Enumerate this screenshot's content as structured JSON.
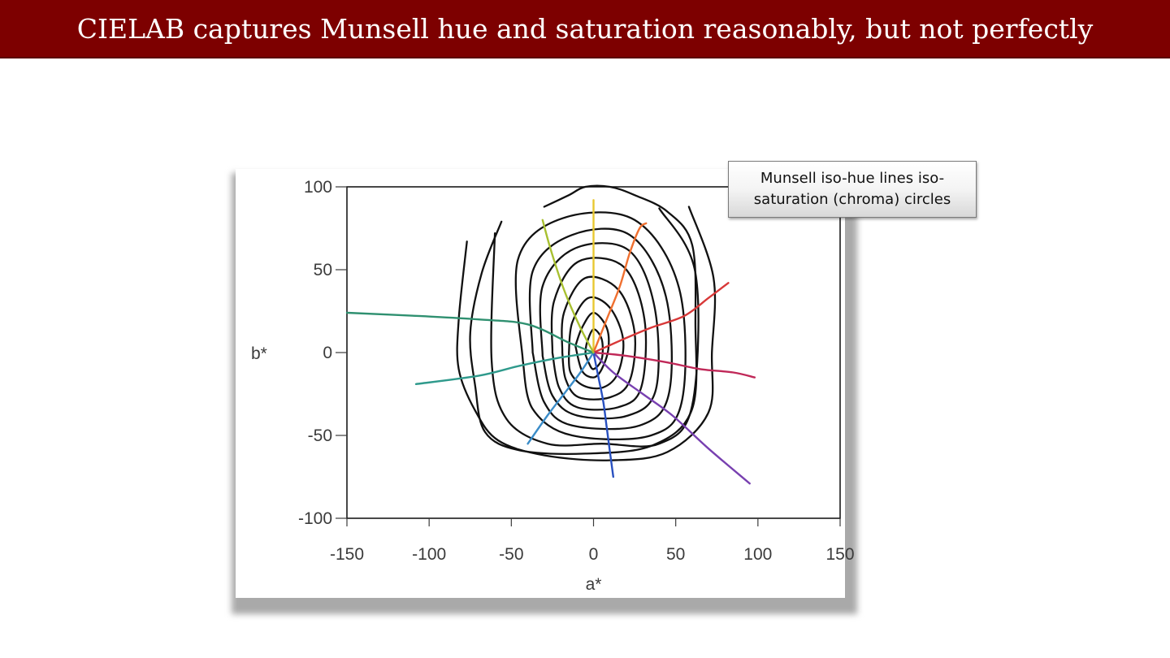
{
  "slide": {
    "title": "CIELAB captures Munsell hue and saturation reasonably, but not perfectly",
    "title_bar_color": "#7d0000",
    "callout_text": "Munsell iso-hue lines  iso-saturation (chroma) circles"
  },
  "chart_data": {
    "type": "line",
    "title": "",
    "xlabel": "a*",
    "ylabel": "b*",
    "xlim": [
      -150,
      150
    ],
    "ylim": [
      -100,
      100
    ],
    "xticks": [
      -150,
      -100,
      -50,
      0,
      50,
      100,
      150
    ],
    "yticks": [
      100,
      50,
      0,
      -50,
      -100
    ],
    "grid": false,
    "iso_hue_lines": [
      {
        "color": "#e8c830",
        "points": [
          [
            0,
            0
          ],
          [
            0,
            20
          ],
          [
            0,
            40
          ],
          [
            0,
            60
          ],
          [
            0,
            80
          ],
          [
            0,
            92
          ]
        ]
      },
      {
        "color": "#f07030",
        "points": [
          [
            0,
            0
          ],
          [
            8,
            20
          ],
          [
            16,
            40
          ],
          [
            22,
            60
          ],
          [
            28,
            75
          ],
          [
            32,
            78
          ]
        ]
      },
      {
        "color": "#d83838",
        "points": [
          [
            0,
            0
          ],
          [
            18,
            8
          ],
          [
            35,
            15
          ],
          [
            55,
            22
          ],
          [
            70,
            33
          ],
          [
            82,
            42
          ]
        ]
      },
      {
        "color": "#c02858",
        "points": [
          [
            0,
            0
          ],
          [
            20,
            -2
          ],
          [
            45,
            -6
          ],
          [
            65,
            -10
          ],
          [
            85,
            -12
          ],
          [
            98,
            -15
          ]
        ]
      },
      {
        "color": "#7840b0",
        "points": [
          [
            0,
            0
          ],
          [
            12,
            -12
          ],
          [
            30,
            -25
          ],
          [
            48,
            -38
          ],
          [
            70,
            -58
          ],
          [
            95,
            -79
          ]
        ]
      },
      {
        "color": "#2850c0",
        "points": [
          [
            0,
            0
          ],
          [
            3,
            -15
          ],
          [
            6,
            -30
          ],
          [
            8,
            -45
          ],
          [
            10,
            -60
          ],
          [
            12,
            -75
          ]
        ]
      },
      {
        "color": "#3a8cc8",
        "points": [
          [
            0,
            0
          ],
          [
            -8,
            -12
          ],
          [
            -18,
            -25
          ],
          [
            -28,
            -38
          ],
          [
            -40,
            -55
          ]
        ]
      },
      {
        "color": "#2f9a8c",
        "points": [
          [
            0,
            0
          ],
          [
            -20,
            -3
          ],
          [
            -45,
            -8
          ],
          [
            -70,
            -14
          ],
          [
            -108,
            -19
          ]
        ]
      },
      {
        "color": "#2f9070",
        "points": [
          [
            0,
            0
          ],
          [
            -15,
            6
          ],
          [
            -40,
            17
          ],
          [
            -70,
            20
          ],
          [
            -105,
            22
          ],
          [
            -150,
            24
          ]
        ]
      },
      {
        "color": "#a8c030",
        "points": [
          [
            0,
            0
          ],
          [
            -8,
            15
          ],
          [
            -18,
            38
          ],
          [
            -26,
            62
          ],
          [
            -31,
            80
          ]
        ]
      }
    ],
    "iso_chroma_contours": [
      {
        "color": "#111111",
        "points": [
          [
            -5,
            -1
          ],
          [
            -4,
            6
          ],
          [
            0,
            14
          ],
          [
            5,
            8
          ],
          [
            5,
            -4
          ],
          [
            0,
            -10
          ],
          [
            -3,
            -6
          ],
          [
            -5,
            -1
          ]
        ]
      },
      {
        "color": "#111111",
        "points": [
          [
            -11,
            4
          ],
          [
            -7,
            15
          ],
          [
            0,
            24
          ],
          [
            8,
            15
          ],
          [
            9,
            2
          ],
          [
            5,
            -10
          ],
          [
            0,
            -15
          ],
          [
            -7,
            -11
          ],
          [
            -11,
            4
          ]
        ]
      },
      {
        "color": "#111111",
        "points": [
          [
            -15,
            0
          ],
          [
            -13,
            18
          ],
          [
            -3,
            33
          ],
          [
            10,
            27
          ],
          [
            18,
            8
          ],
          [
            15,
            -12
          ],
          [
            6,
            -21
          ],
          [
            -6,
            -20
          ],
          [
            -14,
            -12
          ],
          [
            -15,
            0
          ]
        ]
      },
      {
        "color": "#111111",
        "points": [
          [
            -19,
            0
          ],
          [
            -18,
            24
          ],
          [
            -5,
            45
          ],
          [
            15,
            38
          ],
          [
            25,
            12
          ],
          [
            22,
            -17
          ],
          [
            10,
            -27
          ],
          [
            -9,
            -27
          ],
          [
            -17,
            -16
          ],
          [
            -19,
            0
          ]
        ]
      },
      {
        "color": "#111111",
        "points": [
          [
            -25,
            0
          ],
          [
            -24,
            31
          ],
          [
            -9,
            55
          ],
          [
            18,
            52
          ],
          [
            31,
            20
          ],
          [
            29,
            -21
          ],
          [
            15,
            -33
          ],
          [
            -10,
            -33
          ],
          [
            -21,
            -21
          ],
          [
            -25,
            0
          ]
        ]
      },
      {
        "color": "#111111",
        "points": [
          [
            -31,
            -2
          ],
          [
            -31,
            40
          ],
          [
            -11,
            63
          ],
          [
            21,
            62
          ],
          [
            37,
            28
          ],
          [
            38,
            -22
          ],
          [
            21,
            -38
          ],
          [
            -10,
            -38
          ],
          [
            -25,
            -26
          ],
          [
            -31,
            -2
          ]
        ]
      },
      {
        "color": "#111111",
        "points": [
          [
            -37,
            0
          ],
          [
            -37,
            49
          ],
          [
            -13,
            71
          ],
          [
            22,
            71
          ],
          [
            44,
            34
          ],
          [
            46,
            -24
          ],
          [
            28,
            -44
          ],
          [
            -13,
            -44
          ],
          [
            -30,
            -30
          ],
          [
            -37,
            0
          ]
        ]
      },
      {
        "color": "#111111",
        "points": [
          [
            -43,
            -5
          ],
          [
            -46,
            56
          ],
          [
            -19,
            81
          ],
          [
            25,
            80
          ],
          [
            52,
            39
          ],
          [
            54,
            -28
          ],
          [
            35,
            -50
          ],
          [
            -13,
            -50
          ],
          [
            -37,
            -34
          ],
          [
            -43,
            -5
          ]
        ]
      },
      {
        "color": "#111111",
        "points": [
          [
            -60,
            72
          ],
          [
            -62,
            -5
          ],
          [
            -53,
            -40
          ],
          [
            -28,
            -55
          ],
          [
            5,
            -55
          ],
          [
            40,
            -55
          ],
          [
            60,
            -32
          ],
          [
            62,
            48
          ],
          [
            40,
            87
          ]
        ]
      },
      {
        "color": "#111111",
        "points": [
          [
            -77,
            67
          ],
          [
            -82,
            20
          ],
          [
            -82,
            -10
          ],
          [
            -72,
            -35
          ],
          [
            -58,
            -53
          ],
          [
            -30,
            -62
          ],
          [
            10,
            -65
          ],
          [
            45,
            -60
          ],
          [
            70,
            -36
          ],
          [
            72,
            0
          ],
          [
            73,
            45
          ],
          [
            58,
            88
          ]
        ]
      },
      {
        "color": "#111111",
        "points": [
          [
            -56,
            79
          ],
          [
            -68,
            48
          ],
          [
            -75,
            12
          ],
          [
            -72,
            -20
          ],
          [
            -66,
            -48
          ],
          [
            -45,
            -59
          ],
          [
            -5,
            -61
          ],
          [
            36,
            -56
          ],
          [
            60,
            -34
          ],
          [
            62,
            18
          ],
          [
            60,
            65
          ],
          [
            45,
            85
          ],
          [
            25,
            95
          ],
          [
            10,
            100
          ],
          [
            -5,
            100
          ],
          [
            -15,
            95
          ],
          [
            -30,
            88
          ]
        ]
      }
    ]
  }
}
